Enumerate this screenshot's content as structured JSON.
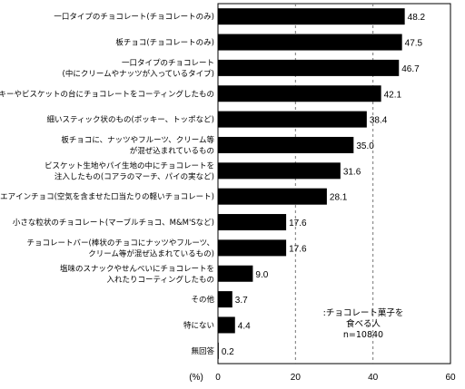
{
  "chart_data": {
    "type": "bar",
    "orientation": "horizontal",
    "categories": [
      [
        "一口タイプのチョコレート(チョコレートのみ)"
      ],
      [
        "板チョコ(チョコレートのみ)"
      ],
      [
        "一口タイプのチョコレート",
        "(中にクリームやナッツが入っているタイプ)"
      ],
      [
        "クッキーやビスケットの台にチョコレートをコーティングしたもの"
      ],
      [
        "細いスティック状のもの(ポッキー、トッポなど)"
      ],
      [
        "板チョコに、ナッツやフルーツ、クリーム等",
        "が混ぜ込まれているもの"
      ],
      [
        "ビスケット生地やパイ生地の中にチョコレートを",
        "注入したもの(コアラのマーチ、パイの実など)"
      ],
      [
        "エアインチョコ(空気を含ませた口当たりの軽いチョコレート)"
      ],
      [
        "小さな粒状のチョコレート(マーブルチョコ、M&M'Sなど)"
      ],
      [
        "チョコレートバー(棒状のチョコにナッツやフルーツ、",
        "クリーム等が混ぜ込まれているもの)"
      ],
      [
        "塩味のスナックやせんべいにチョコレートを",
        "入れたりコーティングしたもの"
      ],
      [
        "その他"
      ],
      [
        "特にない"
      ],
      [
        "無回答"
      ]
    ],
    "values": [
      48.2,
      47.5,
      46.7,
      42.1,
      38.4,
      35.0,
      31.6,
      28.1,
      17.6,
      17.6,
      9.0,
      3.7,
      4.4,
      0.2
    ],
    "value_labels": [
      "48.2",
      "47.5",
      "46.7",
      "42.1",
      "38.4",
      "35.0",
      "31.6",
      "28.1",
      "17.6",
      "17.6",
      "9.0",
      "3.7",
      "4.4",
      "0.2"
    ],
    "xlim": [
      0,
      60
    ],
    "xticks": [
      "0",
      "20",
      "40",
      "60"
    ],
    "xlabel": "(%)",
    "grid": "vertical dashed",
    "bar_color": "#000000",
    "legend": {
      "placement": "bottom-right",
      "lines": [
        ":チョコレート菓子を",
        "食べる人",
        "n=10840"
      ]
    }
  }
}
